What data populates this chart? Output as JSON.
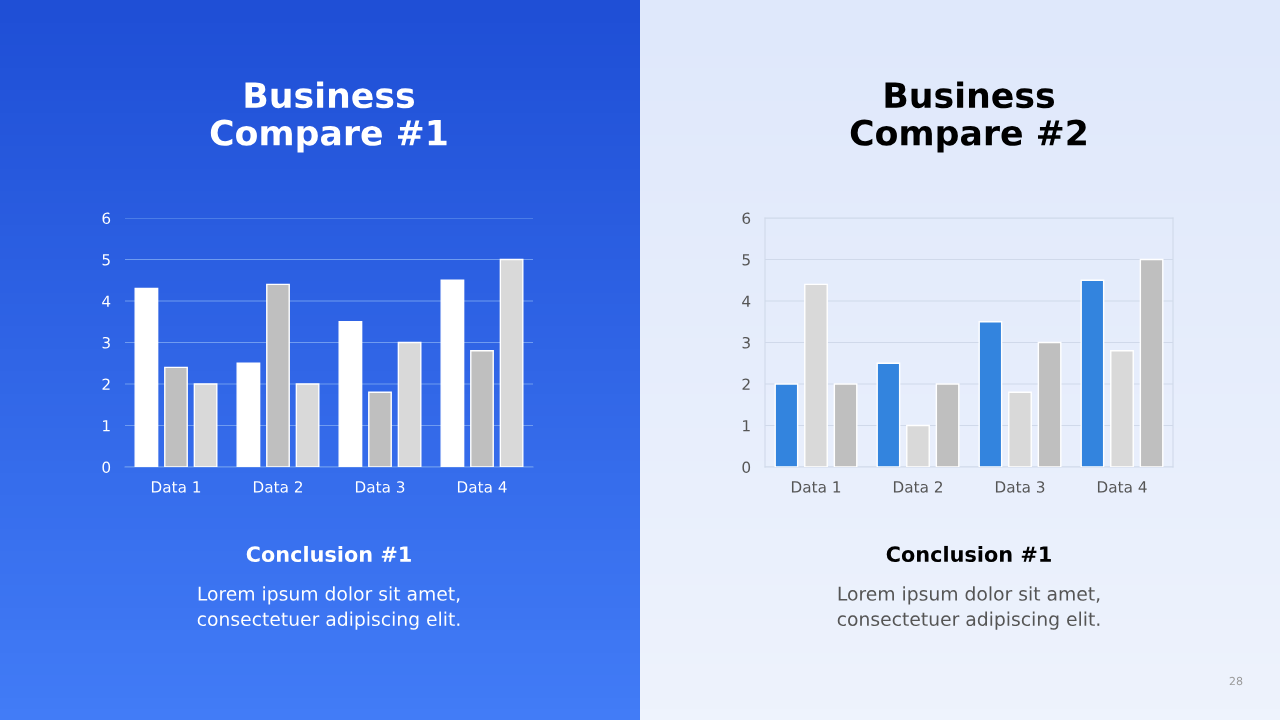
{
  "chart_data": [
    {
      "type": "bar",
      "title": "Business\nCompare #1",
      "categories": [
        "Data 1",
        "Data 2",
        "Data 3",
        "Data 4"
      ],
      "series": [
        {
          "color": "#ffffff",
          "values": [
            4.3,
            2.5,
            3.5,
            4.5
          ]
        },
        {
          "color": "#bfbfbf",
          "values": [
            2.4,
            4.4,
            1.8,
            2.8
          ]
        },
        {
          "color": "#d9d9d9",
          "values": [
            2,
            2,
            3,
            5
          ]
        }
      ],
      "ylim": [
        0,
        6
      ],
      "yticks": [
        0,
        1,
        2,
        3,
        4,
        5,
        6
      ],
      "grid": "y",
      "annotations": [
        "Conclusion #1",
        "Lorem ipsum dolor sit amet,\nconsectetuer adipiscing elit."
      ]
    },
    {
      "type": "bar",
      "title": "Business\nCompare #2",
      "categories": [
        "Data 1",
        "Data 2",
        "Data 3",
        "Data 4"
      ],
      "series": [
        {
          "color": "#3384de",
          "values": [
            2,
            2.5,
            3.5,
            4.5
          ]
        },
        {
          "color": "#d9d9d9",
          "values": [
            4.4,
            1,
            1.8,
            2.8
          ]
        },
        {
          "color": "#bfbfbf",
          "values": [
            2,
            2,
            3,
            5
          ]
        }
      ],
      "ylim": [
        0,
        6
      ],
      "yticks": [
        0,
        1,
        2,
        3,
        4,
        5,
        6
      ],
      "grid": "y",
      "annotations": [
        "Conclusion #1",
        "Lorem ipsum dolor sit amet,\nconsectetuer adipiscing elit.",
        "28"
      ]
    }
  ]
}
